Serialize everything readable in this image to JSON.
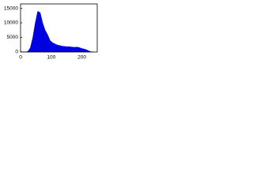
{
  "chart_data": {
    "type": "area",
    "color": "#0000e0",
    "x": [
      0,
      8,
      16,
      24,
      32,
      40,
      48,
      56,
      64,
      72,
      80,
      88,
      96,
      104,
      112,
      120,
      128,
      136,
      144,
      152,
      160,
      168,
      176,
      184,
      192,
      200,
      208,
      216,
      224,
      232,
      240
    ],
    "values": [
      0,
      0,
      0,
      200,
      1500,
      5000,
      10000,
      14000,
      13500,
      10000,
      7500,
      6000,
      4000,
      3200,
      2800,
      2400,
      2200,
      2000,
      1900,
      1800,
      1800,
      1700,
      1600,
      1700,
      1500,
      1200,
      1000,
      700,
      300,
      0,
      0
    ],
    "xlim": [
      0,
      250
    ],
    "xticks": [
      0,
      100,
      200
    ],
    "ylim": [
      0,
      16500
    ],
    "yticks": [
      0,
      5000,
      10000,
      15000
    ]
  }
}
